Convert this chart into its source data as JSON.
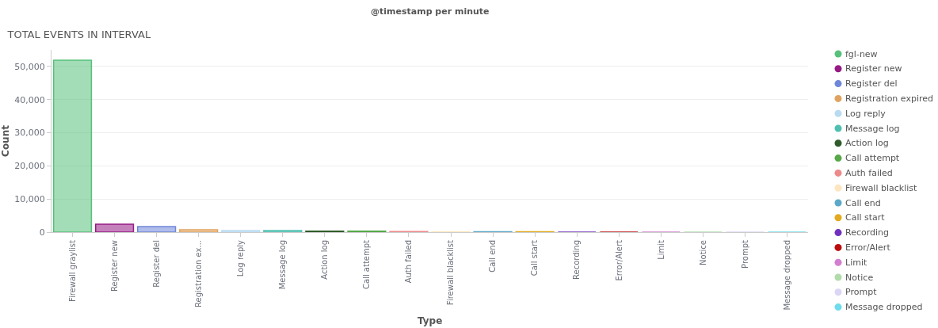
{
  "chart_data": {
    "type": "bar",
    "title": "TOTAL EVENTS IN INTERVAL",
    "xlabel": "Type",
    "ylabel": "Count",
    "annotations": [
      "@timestamp per minute"
    ],
    "categories": [
      "Firewall graylist",
      "Register new",
      "Register del",
      "Registration ex...",
      "Log reply",
      "Message log",
      "Action log",
      "Call attempt",
      "Auth failed",
      "Firewall blacklist",
      "Call end",
      "Call start",
      "Recording",
      "Error/Alert",
      "Limit",
      "Notice",
      "Prompt",
      "Message dropped"
    ],
    "series": [
      {
        "name": "fgl-new",
        "color": "#57c17b",
        "values": [
          51900,
          null,
          null,
          null,
          null,
          null,
          null,
          null,
          null,
          null,
          null,
          null,
          null,
          null,
          null,
          null,
          null,
          null
        ]
      },
      {
        "name": "Register new",
        "color": "#961a84",
        "values": [
          null,
          2400,
          null,
          null,
          null,
          null,
          null,
          null,
          null,
          null,
          null,
          null,
          null,
          null,
          null,
          null,
          null,
          null
        ]
      },
      {
        "name": "Register del",
        "color": "#6f87d8",
        "values": [
          null,
          null,
          1700,
          null,
          null,
          null,
          null,
          null,
          null,
          null,
          null,
          null,
          null,
          null,
          null,
          null,
          null,
          null
        ]
      },
      {
        "name": "Registration expired",
        "color": "#e0a35f",
        "values": [
          null,
          null,
          null,
          700,
          null,
          null,
          null,
          null,
          null,
          null,
          null,
          null,
          null,
          null,
          null,
          null,
          null,
          null
        ]
      },
      {
        "name": "Log reply",
        "color": "#b9dbf2",
        "values": [
          null,
          null,
          null,
          null,
          500,
          null,
          null,
          null,
          null,
          null,
          null,
          null,
          null,
          null,
          null,
          null,
          null,
          null
        ]
      },
      {
        "name": "Message log",
        "color": "#4fc0b0",
        "values": [
          null,
          null,
          null,
          null,
          null,
          500,
          null,
          null,
          null,
          null,
          null,
          null,
          null,
          null,
          null,
          null,
          null,
          null
        ]
      },
      {
        "name": "Action log",
        "color": "#2f5c2a",
        "values": [
          null,
          null,
          null,
          null,
          null,
          null,
          300,
          null,
          null,
          null,
          null,
          null,
          null,
          null,
          null,
          null,
          null,
          null
        ]
      },
      {
        "name": "Call attempt",
        "color": "#56a848",
        "values": [
          null,
          null,
          null,
          null,
          null,
          null,
          null,
          300,
          null,
          null,
          null,
          null,
          null,
          null,
          null,
          null,
          null,
          null
        ]
      },
      {
        "name": "Auth failed",
        "color": "#ee8a8c",
        "values": [
          null,
          null,
          null,
          null,
          null,
          null,
          null,
          null,
          200,
          null,
          null,
          null,
          null,
          null,
          null,
          null,
          null,
          null
        ]
      },
      {
        "name": "Firewall blacklist",
        "color": "#fde5c0",
        "values": [
          null,
          null,
          null,
          null,
          null,
          null,
          null,
          null,
          null,
          100,
          null,
          null,
          null,
          null,
          null,
          null,
          null,
          null
        ]
      },
      {
        "name": "Call end",
        "color": "#5ba8c8",
        "values": [
          null,
          null,
          null,
          null,
          null,
          null,
          null,
          null,
          null,
          null,
          100,
          null,
          null,
          null,
          null,
          null,
          null,
          null
        ]
      },
      {
        "name": "Call start",
        "color": "#e3aa1e",
        "values": [
          null,
          null,
          null,
          null,
          null,
          null,
          null,
          null,
          null,
          null,
          null,
          100,
          null,
          null,
          null,
          null,
          null,
          null
        ]
      },
      {
        "name": "Recording",
        "color": "#7230c0",
        "values": [
          null,
          null,
          null,
          null,
          null,
          null,
          null,
          null,
          null,
          null,
          null,
          null,
          0,
          null,
          null,
          null,
          null,
          null
        ]
      },
      {
        "name": "Error/Alert",
        "color": "#bb0d0d",
        "values": [
          null,
          null,
          null,
          null,
          null,
          null,
          null,
          null,
          null,
          null,
          null,
          null,
          null,
          0,
          null,
          null,
          null,
          null
        ]
      },
      {
        "name": "Limit",
        "color": "#d47ed0",
        "values": [
          null,
          null,
          null,
          null,
          null,
          null,
          null,
          null,
          null,
          null,
          null,
          null,
          null,
          null,
          0,
          null,
          null,
          null
        ]
      },
      {
        "name": "Notice",
        "color": "#b0dcaa",
        "values": [
          null,
          null,
          null,
          null,
          null,
          null,
          null,
          null,
          null,
          null,
          null,
          null,
          null,
          null,
          null,
          0,
          null,
          null
        ]
      },
      {
        "name": "Prompt",
        "color": "#dcd5f5",
        "values": [
          null,
          null,
          null,
          null,
          null,
          null,
          null,
          null,
          null,
          null,
          null,
          null,
          null,
          null,
          null,
          null,
          0,
          null
        ]
      },
      {
        "name": "Message dropped",
        "color": "#6ddceb",
        "values": [
          null,
          null,
          null,
          null,
          null,
          null,
          null,
          null,
          null,
          null,
          null,
          null,
          null,
          null,
          null,
          null,
          null,
          0
        ]
      }
    ],
    "ylim": [
      0,
      55000
    ],
    "yticks": [
      0,
      {
        "value": 10000,
        "label": "10,000"
      },
      {
        "value": 20000,
        "label": "20,000"
      },
      {
        "value": 30000,
        "label": "30,000"
      },
      {
        "value": 40000,
        "label": "40,000"
      },
      {
        "value": 50000,
        "label": "50,000"
      }
    ],
    "grid": "y",
    "legend": "right"
  }
}
